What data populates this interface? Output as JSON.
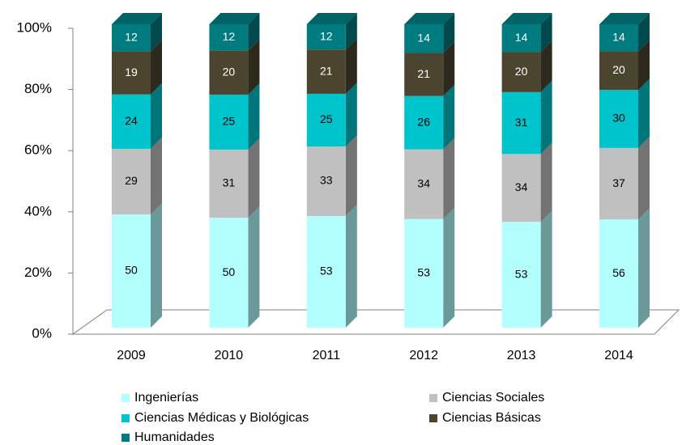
{
  "chart_data": {
    "type": "bar",
    "stacking": "percent",
    "categories": [
      "2009",
      "2010",
      "2011",
      "2012",
      "2013",
      "2014"
    ],
    "series": [
      {
        "name": "Ingenierías",
        "color": "#b3ffff",
        "values": [
          50,
          50,
          53,
          53,
          53,
          56
        ]
      },
      {
        "name": "Ciencias Sociales",
        "color": "#c0c0c0",
        "values": [
          29,
          31,
          33,
          34,
          34,
          37
        ]
      },
      {
        "name": "Ciencias Médicas y Biológicas",
        "color": "#00c4cc",
        "values": [
          24,
          25,
          25,
          26,
          31,
          30
        ]
      },
      {
        "name": "Ciencias Básicas",
        "color": "#4b4530",
        "values": [
          19,
          20,
          21,
          21,
          20,
          20
        ]
      },
      {
        "name": "Humanidades",
        "color": "#007c80",
        "values": [
          12,
          12,
          12,
          14,
          14,
          14
        ]
      }
    ],
    "ylim": [
      0,
      100
    ],
    "yticks": [
      {
        "value": 0,
        "label": "0%"
      },
      {
        "value": 20,
        "label": "20%"
      },
      {
        "value": 40,
        "label": "40%"
      },
      {
        "value": 60,
        "label": "60%"
      },
      {
        "value": 80,
        "label": "80%"
      },
      {
        "value": 100,
        "label": "100%"
      }
    ],
    "legend": "bottom"
  }
}
